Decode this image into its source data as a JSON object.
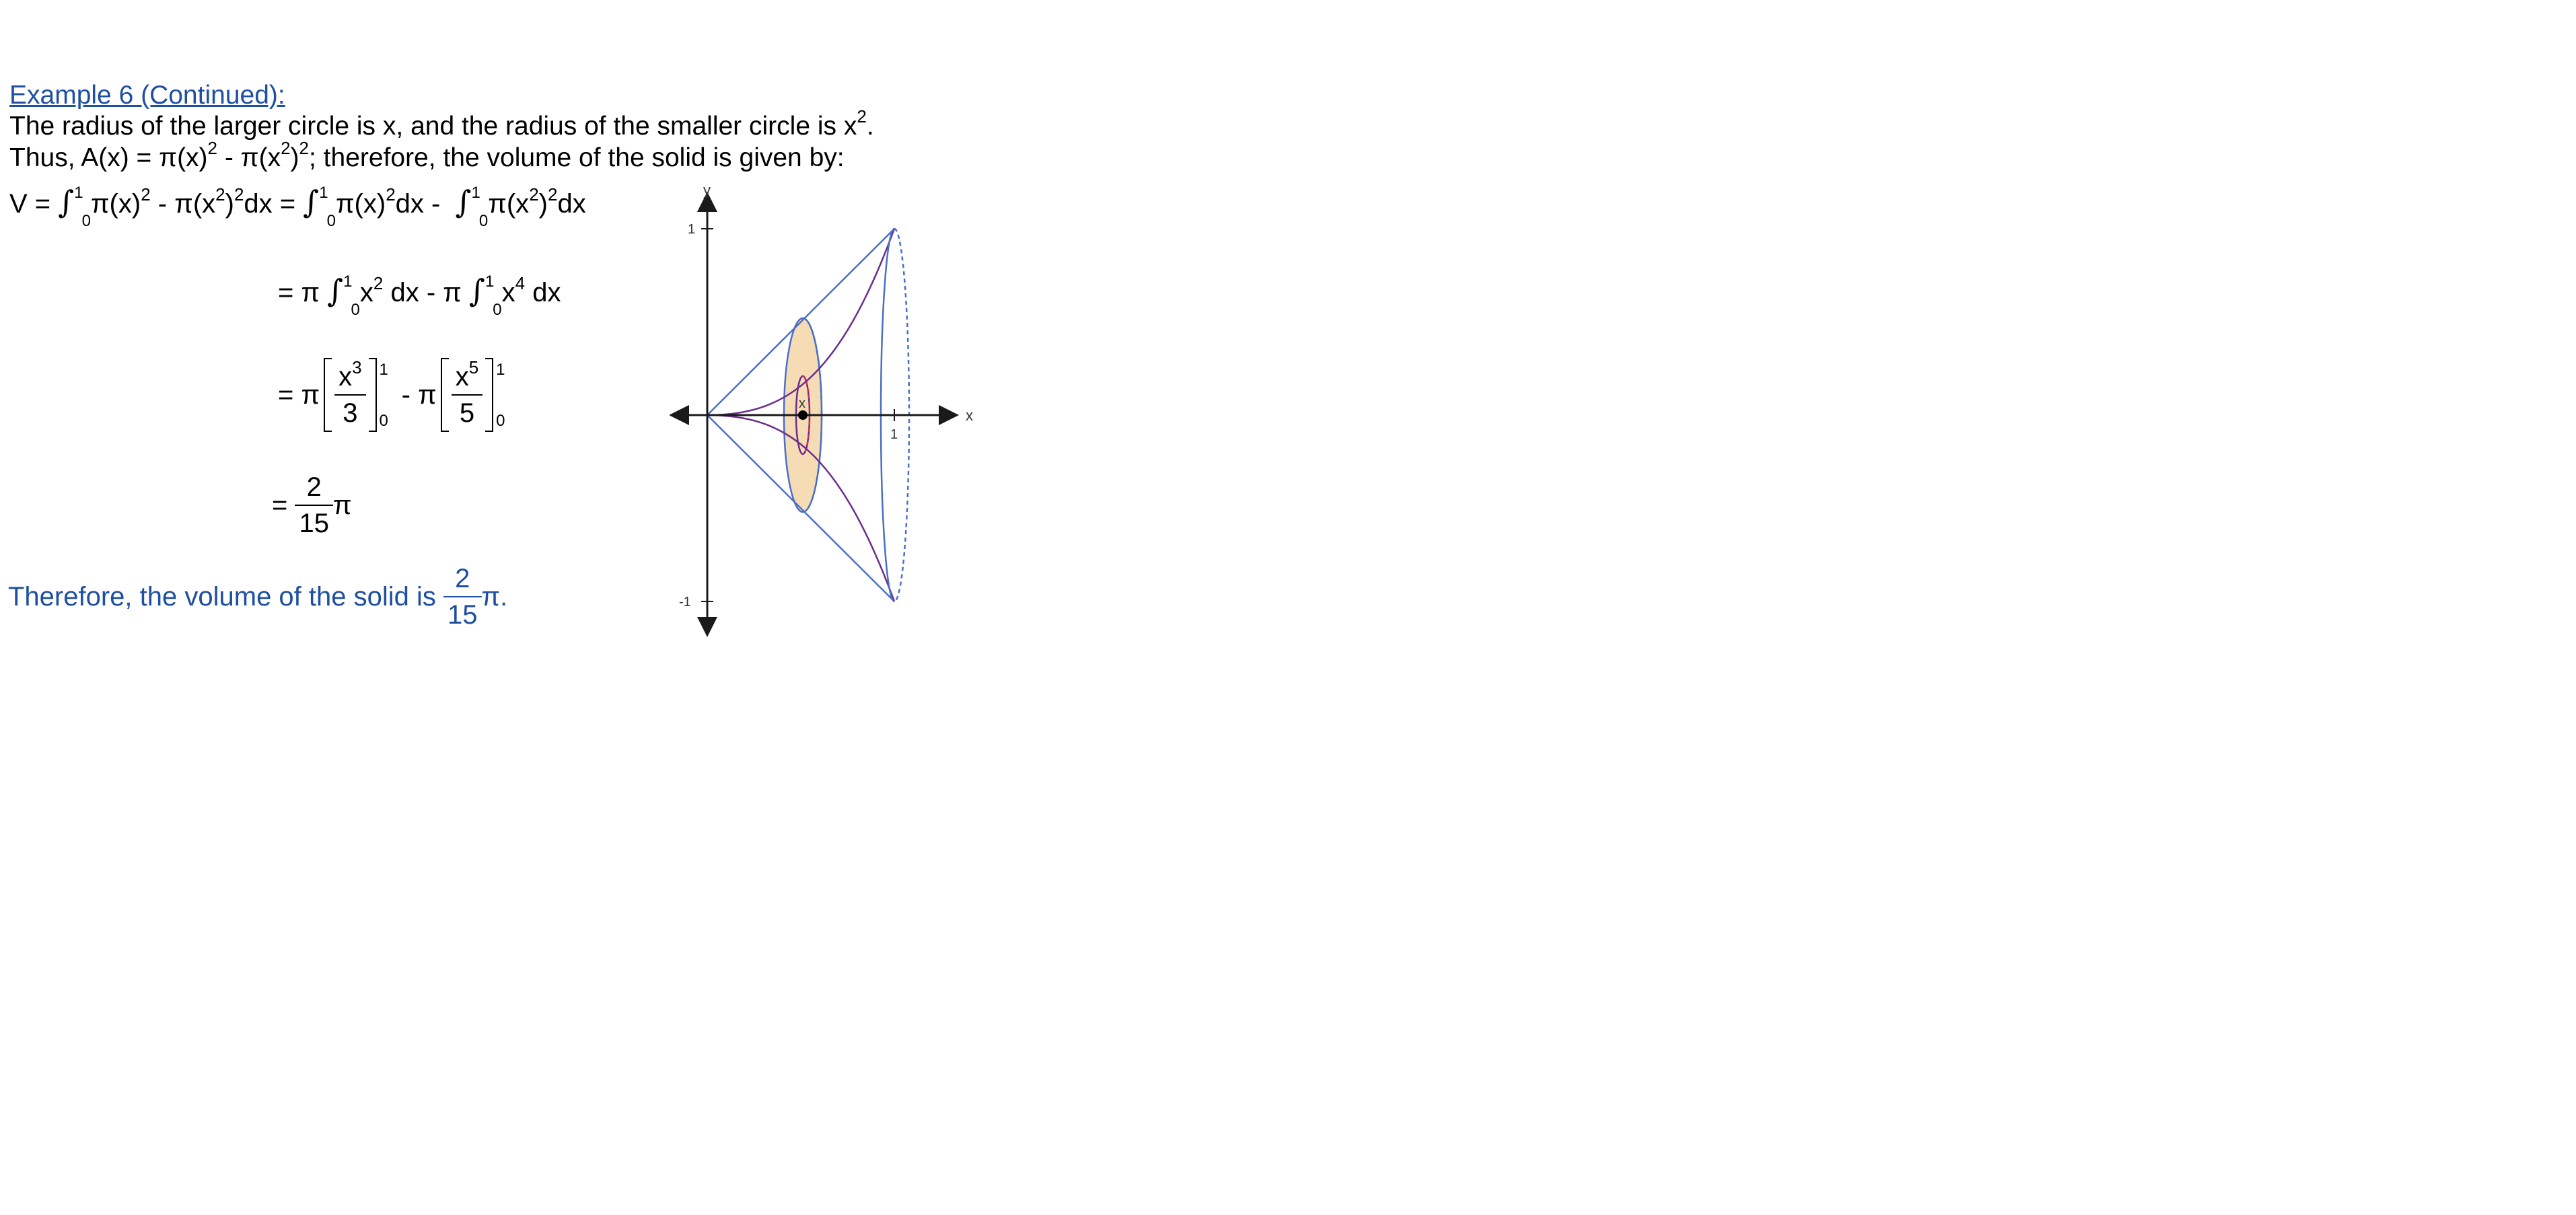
{
  "heading": "Example 6 (Continued):",
  "para1": {
    "pre": "The radius of the larger circle is x, and the radius of the smaller circle is x",
    "exp": "2",
    "post": "."
  },
  "para2": {
    "a": "Thus, A(x) = π(x)",
    "e1": "2",
    "b": " - π(x",
    "e2": "2",
    "c": ")",
    "e3": "2",
    "d": "; therefore, the volume of the solid is given by:"
  },
  "eq1": {
    "lhs": "V = ",
    "int_symbol": "∫",
    "upper": "1",
    "lower": "0",
    "t1": "π(x)",
    "t2": " - π(x",
    "t3": ")",
    "t4": "dx = ",
    "t5": "π(x)",
    "t6": "dx - ",
    "t7": "π(x",
    "t8": ")",
    "t9": "dx",
    "two": "2"
  },
  "eq2": {
    "a": "= π ",
    "b": "x",
    "c": " dx - π ",
    "d": "x",
    "e": " dx",
    "exp2": "2",
    "exp4": "4"
  },
  "eq3": {
    "a": "= π",
    "num1": "x",
    "num1_exp": "3",
    "den1": "3",
    "mid": " - π",
    "num2": "x",
    "num2_exp": "5",
    "den2": "5",
    "upper": "1",
    "lower": "0"
  },
  "eq4": {
    "a": "= ",
    "num": "2",
    "den": "15",
    "pi": "π"
  },
  "conclusion": {
    "text": "Therefore, the volume of the solid is ",
    "num": "2",
    "den": "15",
    "tail": "π."
  },
  "figure": {
    "x_axis_label": "x",
    "y_axis_label": "y",
    "x_tick": "1",
    "y_tick_top": "1",
    "y_tick_bottom": "-1",
    "slice_label": "x",
    "colors": {
      "cone": "#4a6fc6",
      "curve": "#6a2d8c",
      "slice_fill": "#f6dcb4",
      "inner_dash": "#d03060",
      "axis": "#1a1a1a"
    }
  }
}
